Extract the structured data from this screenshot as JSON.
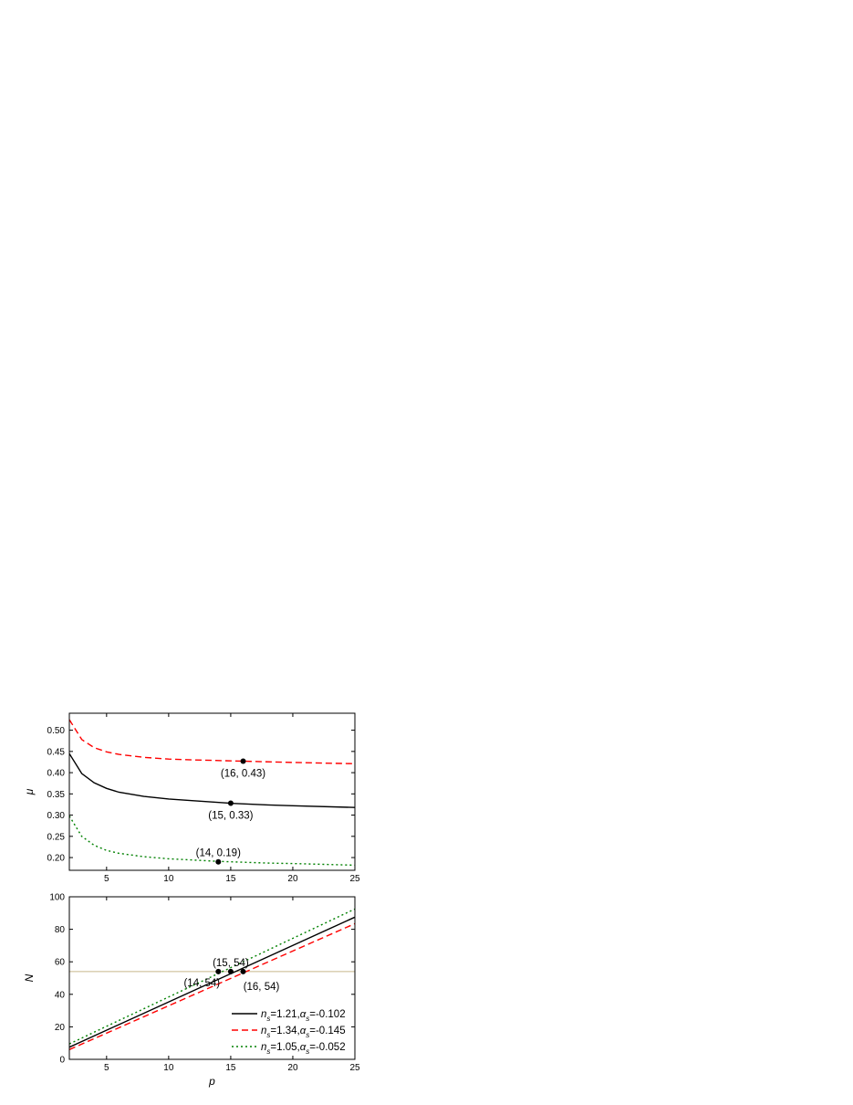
{
  "chart_data": [
    {
      "type": "line",
      "ylabel": "μ",
      "xlabel": "",
      "xlim": [
        2,
        25
      ],
      "ylim": [
        0.17,
        0.54
      ],
      "xticks": [
        5,
        10,
        15,
        20,
        25
      ],
      "yticks": [
        0.2,
        0.25,
        0.3,
        0.35,
        0.4,
        0.45,
        0.5
      ],
      "ytick_labels": [
        "0.20",
        "0.25",
        "0.30",
        "0.35",
        "0.40",
        "0.45",
        "0.50"
      ],
      "grid": false,
      "series": [
        {
          "color": "#000000",
          "dash": "solid",
          "x": [
            2,
            3,
            4,
            5,
            6,
            8,
            10,
            12,
            15,
            18,
            20,
            25
          ],
          "y": [
            0.445,
            0.398,
            0.376,
            0.363,
            0.354,
            0.344,
            0.338,
            0.334,
            0.328,
            0.324,
            0.322,
            0.318
          ]
        },
        {
          "color": "#ff0000",
          "dash": "dashed",
          "x": [
            2,
            3,
            4,
            5,
            6,
            8,
            10,
            12,
            16,
            20,
            25
          ],
          "y": [
            0.525,
            0.478,
            0.459,
            0.449,
            0.443,
            0.436,
            0.432,
            0.43,
            0.427,
            0.424,
            0.421
          ]
        },
        {
          "color": "#008000",
          "dash": "dotted",
          "x": [
            2,
            3,
            4,
            5,
            6,
            8,
            10,
            12,
            14,
            18,
            20,
            25
          ],
          "y": [
            0.298,
            0.25,
            0.229,
            0.217,
            0.21,
            0.202,
            0.197,
            0.194,
            0.191,
            0.187,
            0.186,
            0.182
          ]
        }
      ],
      "points": [
        {
          "x": 16,
          "y": 0.427,
          "label": "(16, 0.43)",
          "label_pos": "below"
        },
        {
          "x": 15,
          "y": 0.328,
          "label": "(15, 0.33)",
          "label_pos": "below"
        },
        {
          "x": 14,
          "y": 0.19,
          "label": "(14, 0.19)",
          "label_pos": "above"
        }
      ]
    },
    {
      "type": "line",
      "xlabel": "p",
      "ylabel": "N",
      "xlim": [
        2,
        25
      ],
      "ylim": [
        0,
        100
      ],
      "xticks": [
        5,
        10,
        15,
        20,
        25
      ],
      "yticks": [
        0,
        20,
        40,
        60,
        80,
        100
      ],
      "grid": false,
      "hline": {
        "y": 54,
        "color": "#c8b88a"
      },
      "series": [
        {
          "color": "#000000",
          "dash": "solid",
          "x": [
            2,
            25
          ],
          "y": [
            7.5,
            87.5
          ],
          "legend": {
            "n": "n",
            "n_sub": "s",
            "n_val": "=1.21,",
            "a": "α",
            "a_sub": "s",
            "a_val": "=-0.102"
          }
        },
        {
          "color": "#ff0000",
          "dash": "dashed",
          "x": [
            2,
            25
          ],
          "y": [
            6.0,
            83.5
          ],
          "legend": {
            "n": "n",
            "n_sub": "s",
            "n_val": "=1.34,",
            "a": "α",
            "a_sub": "s",
            "a_val": "=-0.145"
          }
        },
        {
          "color": "#008000",
          "dash": "dotted",
          "x": [
            2,
            25
          ],
          "y": [
            9.5,
            92.5
          ],
          "legend": {
            "n": "n",
            "n_sub": "s",
            "n_val": "=1.05,",
            "a": "α",
            "a_sub": "s",
            "a_val": "=-0.052"
          }
        }
      ],
      "points": [
        {
          "x": 15,
          "y": 54,
          "label": "(15, 54)",
          "label_pos": "above"
        },
        {
          "x": 14,
          "y": 54,
          "label": "(14, 54)",
          "label_pos": "below-left"
        },
        {
          "x": 16,
          "y": 54,
          "label": "(16, 54)",
          "label_pos": "below-right"
        }
      ],
      "legend_position": "bottom-right"
    }
  ]
}
